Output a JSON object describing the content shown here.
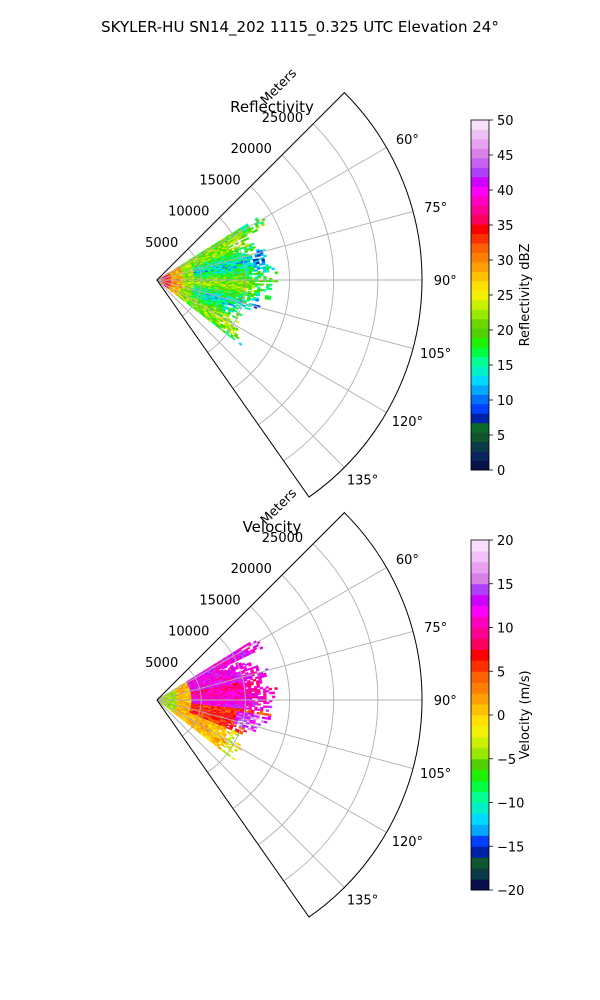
{
  "suptitle": "SKYLER-HU  SN14_202  1115_0.325 UTC Elevation 24°",
  "colors": {
    "ring": "#b0b0b0",
    "frame": "#000000"
  },
  "chart_data": [
    {
      "type": "heatmap",
      "projection": "polar-sector",
      "title": "Reflectivity",
      "radial_label": "Meters",
      "r_range": [
        0,
        30000
      ],
      "r_ticks": [
        5000,
        10000,
        15000,
        20000,
        25000
      ],
      "r_tick_labels": [
        "5000",
        "10000",
        "15000",
        "20000",
        "25000"
      ],
      "theta_range_deg": [
        45,
        145
      ],
      "theta_ticks_deg": [
        60,
        75,
        90,
        105,
        120,
        135
      ],
      "theta_tick_labels": [
        "60°",
        "75°",
        "90°",
        "105°",
        "120°",
        "135°"
      ],
      "data_extent": {
        "r_range": [
          0,
          15000
        ],
        "theta_range_deg": [
          58,
          128
        ]
      },
      "value_pattern": "reflectivity",
      "colorbar": {
        "label": "Reflectivity dBZ",
        "range": [
          0,
          50
        ],
        "ticks": [
          0,
          5,
          10,
          15,
          20,
          25,
          30,
          35,
          40,
          45,
          50
        ],
        "tick_labels": [
          "0",
          "5",
          "10",
          "15",
          "20",
          "25",
          "30",
          "35",
          "40",
          "45",
          "50"
        ],
        "colors": [
          "#08104a",
          "#0a2460",
          "#0b3b45",
          "#0f5530",
          "#0a6b2a",
          "#0022a8",
          "#0040ff",
          "#0070ff",
          "#00a8ff",
          "#00d8ff",
          "#00f0c8",
          "#00ff90",
          "#00ff40",
          "#20f000",
          "#50d000",
          "#6ad800",
          "#98e800",
          "#c8f000",
          "#f0f000",
          "#ffe000",
          "#ffc000",
          "#ffa000",
          "#ff8000",
          "#ff6000",
          "#ff3000",
          "#ff0000",
          "#ff0060",
          "#ff0090",
          "#ff00c0",
          "#ff00ff",
          "#d000ff",
          "#b040ff",
          "#c860f0",
          "#d880e8",
          "#e8a0f0",
          "#f0c0f8",
          "#f8e0fc"
        ]
      }
    },
    {
      "type": "heatmap",
      "projection": "polar-sector",
      "title": "Velocity",
      "radial_label": "Meters",
      "r_range": [
        0,
        30000
      ],
      "r_ticks": [
        5000,
        10000,
        15000,
        20000,
        25000
      ],
      "r_tick_labels": [
        "5000",
        "10000",
        "15000",
        "20000",
        "25000"
      ],
      "theta_range_deg": [
        45,
        145
      ],
      "theta_ticks_deg": [
        60,
        75,
        90,
        105,
        120,
        135
      ],
      "theta_tick_labels": [
        "60°",
        "75°",
        "90°",
        "105°",
        "120°",
        "135°"
      ],
      "data_extent": {
        "r_range": [
          0,
          15000
        ],
        "theta_range_deg": [
          58,
          128
        ]
      },
      "value_pattern": "velocity",
      "colorbar": {
        "label": "Velocity (m/s)",
        "range": [
          -20,
          20
        ],
        "ticks": [
          -20,
          -15,
          -10,
          -5,
          0,
          5,
          10,
          15,
          20
        ],
        "tick_labels": [
          "−20",
          "−15",
          "−10",
          "−5",
          "0",
          "5",
          "10",
          "15",
          "20"
        ],
        "colors": [
          "#08104a",
          "#0b3b45",
          "#0f5530",
          "#0022a8",
          "#0040ff",
          "#00a8ff",
          "#00d8ff",
          "#00f0c8",
          "#00ff90",
          "#00ff40",
          "#20f000",
          "#50d000",
          "#98e800",
          "#c8f000",
          "#f0f000",
          "#ffe000",
          "#ffc000",
          "#ffa000",
          "#ff8000",
          "#ff6000",
          "#ff3000",
          "#ff0000",
          "#ff0060",
          "#ff0090",
          "#ff00c0",
          "#ff00ff",
          "#d000ff",
          "#b040ff",
          "#d880e8",
          "#e8a0f0",
          "#f0c0f8",
          "#f8e0fc"
        ]
      }
    }
  ]
}
